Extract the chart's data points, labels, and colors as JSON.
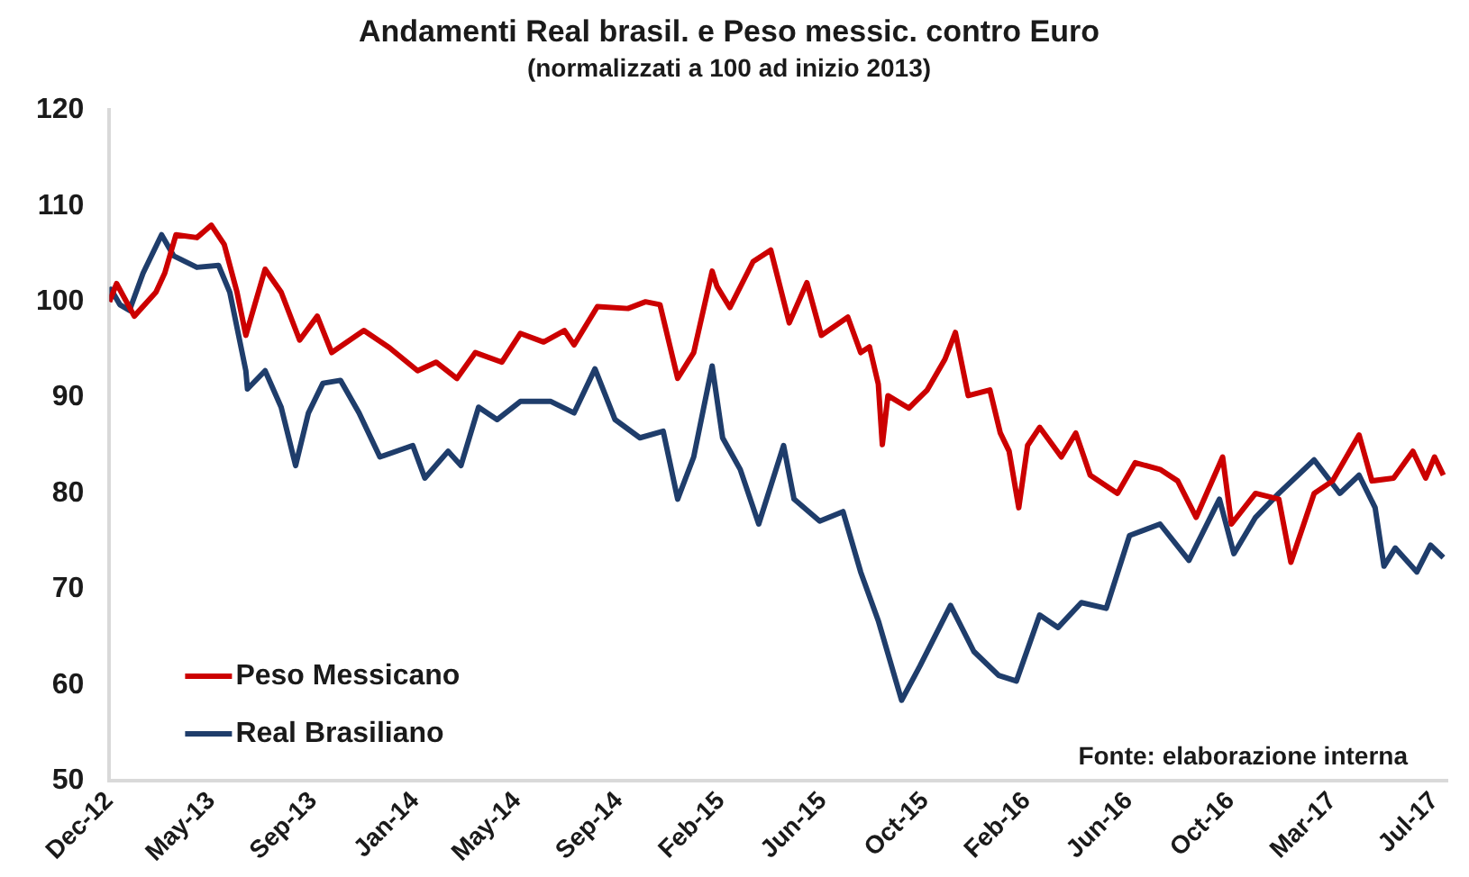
{
  "chart_data": {
    "type": "line",
    "title": "Andamenti Real brasil. e Peso messic. contro Euro",
    "subtitle": "(normalizzati a 100 ad inizio 2013)",
    "annotations": [
      "Fonte: elaborazione interna"
    ],
    "xlim": [
      "2012-12-31",
      "2017-07-25"
    ],
    "xticks": [
      {
        "value": "2012-12-31",
        "label": "Dec-12"
      },
      {
        "value": "2013-05-07",
        "label": "May-13"
      },
      {
        "value": "2013-09-11",
        "label": "Sep-13"
      },
      {
        "value": "2014-01-16",
        "label": "Jan-14"
      },
      {
        "value": "2014-05-23",
        "label": "May-14"
      },
      {
        "value": "2014-09-27",
        "label": "Sep-14"
      },
      {
        "value": "2015-02-01",
        "label": "Feb-15"
      },
      {
        "value": "2015-06-08",
        "label": "Jun-15"
      },
      {
        "value": "2015-10-13",
        "label": "Oct-15"
      },
      {
        "value": "2016-02-17",
        "label": "Feb-16"
      },
      {
        "value": "2016-06-23",
        "label": "Jun-16"
      },
      {
        "value": "2016-10-28",
        "label": "Oct-16"
      },
      {
        "value": "2017-03-04",
        "label": "Mar-17"
      },
      {
        "value": "2017-07-09",
        "label": "Jul-17"
      }
    ],
    "ylim": [
      50,
      120
    ],
    "yticks": [
      50,
      60,
      70,
      80,
      90,
      100,
      110,
      120
    ],
    "grid": false,
    "legend": "bottom left",
    "marker": "none",
    "line_style": "solid",
    "series": [
      {
        "name": "Peso Messicano",
        "color": "#cc0000",
        "x": [
          "2012-12-31",
          "2013-01-09",
          "2013-01-31",
          "2013-02-27",
          "2013-03-10",
          "2013-03-24",
          "2013-04-19",
          "2013-05-07",
          "2013-05-23",
          "2013-06-08",
          "2013-06-19",
          "2013-07-13",
          "2013-08-02",
          "2013-08-25",
          "2013-09-16",
          "2013-10-04",
          "2013-11-13",
          "2013-12-15",
          "2014-01-19",
          "2014-02-11",
          "2014-03-09",
          "2014-04-01",
          "2014-05-04",
          "2014-05-27",
          "2014-06-25",
          "2014-07-21",
          "2014-08-02",
          "2014-08-31",
          "2014-10-08",
          "2014-10-30",
          "2014-11-17",
          "2014-12-09",
          "2014-12-29",
          "2015-01-21",
          "2015-01-27",
          "2015-02-12",
          "2015-03-13",
          "2015-04-04",
          "2015-04-27",
          "2015-05-19",
          "2015-06-06",
          "2015-07-09",
          "2015-07-25",
          "2015-08-05",
          "2015-08-16",
          "2015-08-21",
          "2015-08-28",
          "2015-09-23",
          "2015-10-16",
          "2015-11-07",
          "2015-11-20",
          "2015-12-06",
          "2016-01-02",
          "2016-01-15",
          "2016-01-26",
          "2016-02-07",
          "2016-02-18",
          "2016-03-04",
          "2016-03-31",
          "2016-04-18",
          "2016-05-06",
          "2016-06-09",
          "2016-07-01",
          "2016-08-01",
          "2016-08-23",
          "2016-09-15",
          "2016-10-18",
          "2016-10-29",
          "2016-11-28",
          "2016-12-27",
          "2017-01-11",
          "2017-02-09",
          "2017-03-04",
          "2017-04-06",
          "2017-04-22",
          "2017-05-19",
          "2017-06-12",
          "2017-06-28",
          "2017-07-09",
          "2017-07-20"
        ],
        "values": [
          100,
          101.9,
          98.5,
          101,
          103,
          107,
          106.7,
          108,
          106,
          101,
          96.5,
          103.4,
          101,
          96,
          98.5,
          94.7,
          97,
          95.2,
          92.8,
          93.7,
          92,
          94.7,
          93.7,
          96.7,
          95.8,
          97,
          95.5,
          99.5,
          99.3,
          100,
          99.7,
          92,
          94.7,
          103.2,
          101.6,
          99.4,
          104.2,
          105.4,
          97.8,
          102,
          96.5,
          98.4,
          94.7,
          95.3,
          91.4,
          85.1,
          90.2,
          88.9,
          90.8,
          94,
          96.8,
          90.2,
          90.8,
          86.3,
          84.4,
          78.5,
          85,
          86.9,
          83.8,
          86.3,
          81.9,
          80,
          83.2,
          82.5,
          81.3,
          77.5,
          83.8,
          76.8,
          80,
          79.4,
          72.8,
          80,
          81.3,
          86.1,
          81.3,
          81.6,
          84.4,
          81.6,
          83.8,
          81.9
        ]
      },
      {
        "name": "Real Brasiliano",
        "color": "#1f3d6b",
        "x": [
          "2012-12-31",
          "2013-01-02",
          "2013-01-13",
          "2013-01-25",
          "2013-02-11",
          "2013-03-06",
          "2013-03-21",
          "2013-04-19",
          "2013-05-16",
          "2013-05-30",
          "2013-06-19",
          "2013-06-21",
          "2013-07-13",
          "2013-08-02",
          "2013-08-20",
          "2013-09-05",
          "2013-09-23",
          "2013-10-15",
          "2013-11-07",
          "2013-12-03",
          "2014-01-13",
          "2014-01-28",
          "2014-02-26",
          "2014-03-14",
          "2014-04-05",
          "2014-04-28",
          "2014-05-27",
          "2014-07-04",
          "2014-08-02",
          "2014-08-28",
          "2014-09-22",
          "2014-10-23",
          "2014-11-21",
          "2014-12-09",
          "2014-12-29",
          "2015-01-21",
          "2015-02-03",
          "2015-02-25",
          "2015-03-20",
          "2015-04-20",
          "2015-05-03",
          "2015-06-04",
          "2015-07-03",
          "2015-07-25",
          "2015-08-16",
          "2015-09-14",
          "2015-10-07",
          "2015-11-14",
          "2015-12-13",
          "2016-01-13",
          "2016-02-04",
          "2016-03-04",
          "2016-03-27",
          "2016-04-25",
          "2016-05-26",
          "2016-06-24",
          "2016-08-01",
          "2016-09-06",
          "2016-10-14",
          "2016-11-01",
          "2016-11-28",
          "2016-12-27",
          "2017-02-09",
          "2017-03-13",
          "2017-04-06",
          "2017-04-26",
          "2017-05-07",
          "2017-05-21",
          "2017-06-17",
          "2017-07-04",
          "2017-07-20"
        ],
        "values": [
          100,
          101.3,
          99.7,
          99.1,
          103,
          107,
          104.8,
          103.6,
          103.8,
          101,
          92.8,
          90.9,
          92.8,
          89,
          82.9,
          88.4,
          91.5,
          91.8,
          88.4,
          83.8,
          85,
          81.6,
          84.4,
          82.9,
          89,
          87.7,
          89.6,
          89.6,
          88.4,
          93,
          87.7,
          85.8,
          86.5,
          79.4,
          83.8,
          93.3,
          85.8,
          82.5,
          76.8,
          85,
          79.4,
          77.1,
          78.1,
          71.8,
          66.7,
          58.4,
          62,
          68.3,
          63.5,
          61,
          60.4,
          67.3,
          66,
          68.6,
          68,
          75.6,
          76.8,
          73,
          79.4,
          73.7,
          77.5,
          80,
          83.5,
          80,
          81.9,
          78.5,
          72.4,
          74.3,
          71.8,
          74.6,
          73.3
        ]
      }
    ]
  }
}
